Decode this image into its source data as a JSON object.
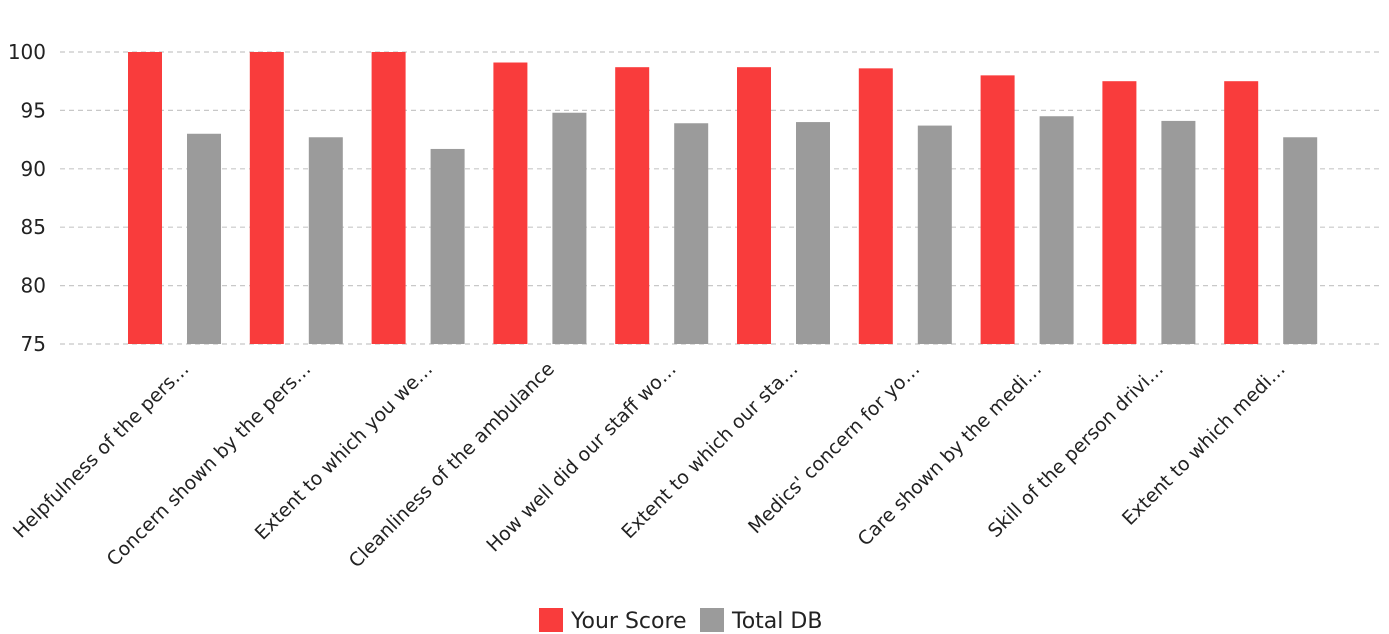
{
  "chart_data": {
    "type": "bar",
    "title": "",
    "xlabel": "",
    "ylabel": "",
    "ylim": [
      75,
      100
    ],
    "yticks": [
      75,
      80,
      85,
      90,
      95,
      100
    ],
    "grid": true,
    "legend_position": "bottom-center",
    "categories": [
      "Helpfulness of the pers…",
      "Concern shown by the pers…",
      "Extent to which you we…",
      "Cleanliness of the ambulance",
      "How well did our staff wo…",
      "Extent to which our sta…",
      "Medics' concern for yo…",
      "Care shown by the medi…",
      "Skill of the person drivi…",
      "Extent to which medi…"
    ],
    "series": [
      {
        "name": "Your Score",
        "color": "#f93c3c",
        "values": [
          100,
          100,
          100,
          99.1,
          98.7,
          98.7,
          98.6,
          98.0,
          97.5,
          97.5
        ]
      },
      {
        "name": "Total DB",
        "color": "#9b9b9b",
        "values": [
          93.0,
          92.7,
          91.7,
          94.8,
          93.9,
          94.0,
          93.7,
          94.5,
          94.1,
          92.7
        ]
      }
    ]
  }
}
